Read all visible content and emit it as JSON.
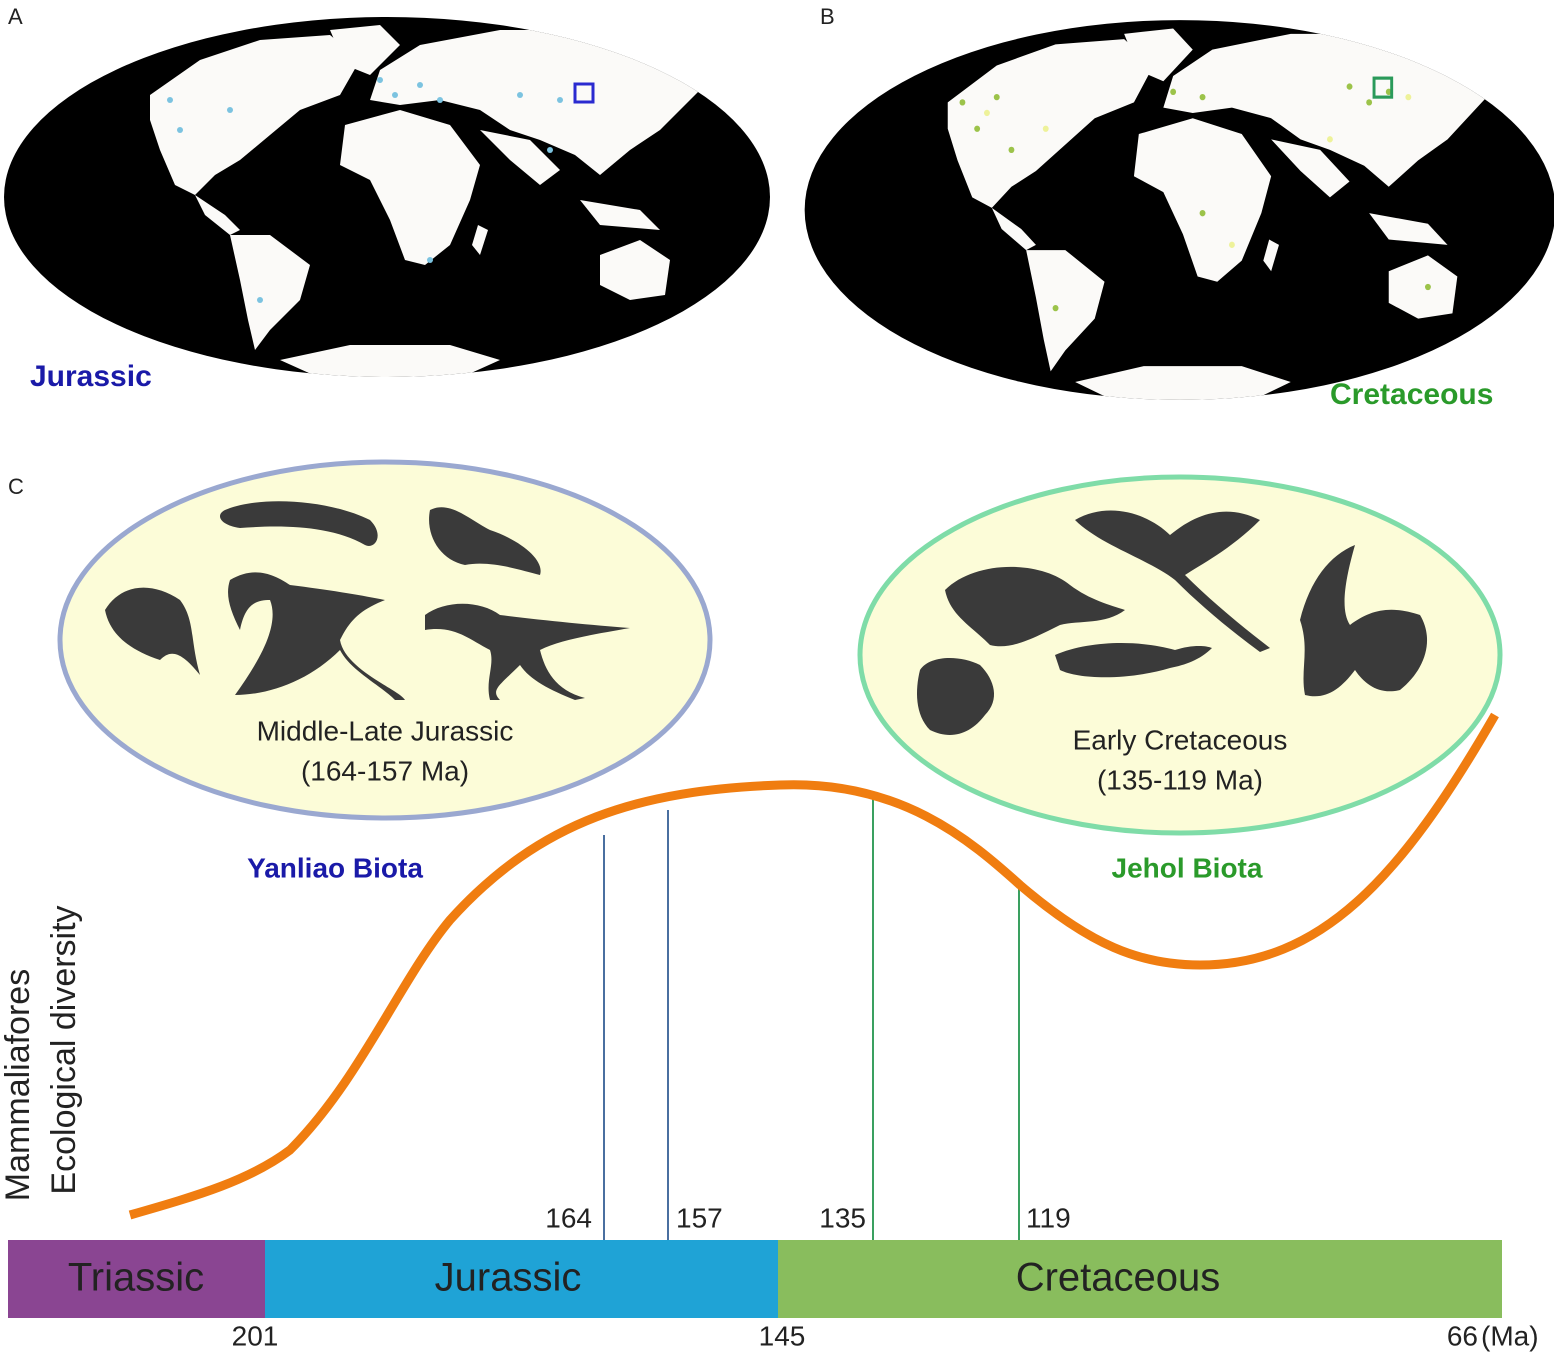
{
  "panels": {
    "a": {
      "label": "A",
      "period": "Jurassic"
    },
    "b": {
      "label": "B",
      "period": "Cretaceous"
    },
    "c": {
      "label": "C",
      "y_axis": [
        "Mammaliafores",
        "Ecological diversity"
      ],
      "biotas": [
        {
          "name": "Yanliao Biota",
          "period": "Middle-Late Jurassic",
          "range": "(164-157 Ma)"
        },
        {
          "name": "Jehol Biota",
          "period": "Early Cretaceous",
          "range": "(135-119 Ma)"
        }
      ],
      "markers": [
        164,
        157,
        135,
        119
      ],
      "periods": [
        "Triassic",
        "Jurassic",
        "Cretaceous"
      ],
      "ages": [
        201,
        145,
        66
      ],
      "unit": "(Ma)"
    }
  }
}
